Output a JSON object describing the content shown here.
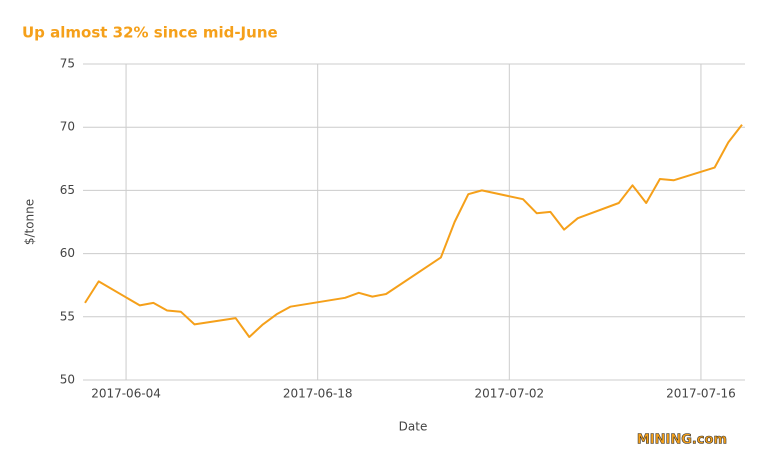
{
  "chart_data": {
    "type": "line",
    "title": "Up almost 32% since mid-June",
    "xlabel": "Date",
    "ylabel": "$/tonne",
    "watermark": "MINING.com",
    "color": "#f5a01a",
    "x": [
      "2017-06-01",
      "2017-06-02",
      "2017-06-05",
      "2017-06-06",
      "2017-06-07",
      "2017-06-08",
      "2017-06-09",
      "2017-06-12",
      "2017-06-13",
      "2017-06-14",
      "2017-06-15",
      "2017-06-16",
      "2017-06-20",
      "2017-06-21",
      "2017-06-22",
      "2017-06-23",
      "2017-06-27",
      "2017-06-28",
      "2017-06-29",
      "2017-06-30",
      "2017-07-03",
      "2017-07-04",
      "2017-07-05",
      "2017-07-06",
      "2017-07-07",
      "2017-07-10",
      "2017-07-11",
      "2017-07-12",
      "2017-07-13",
      "2017-07-14",
      "2017-07-17",
      "2017-07-18",
      "2017-07-19"
    ],
    "values": [
      56.1,
      57.8,
      55.9,
      56.1,
      55.5,
      55.4,
      54.4,
      54.9,
      53.4,
      54.4,
      55.2,
      55.8,
      56.5,
      56.9,
      56.6,
      56.8,
      59.7,
      62.5,
      64.7,
      65.0,
      64.3,
      63.2,
      63.3,
      61.9,
      62.8,
      64.0,
      65.4,
      64.0,
      65.9,
      65.8,
      66.8,
      68.8,
      70.2
    ],
    "xlim": [
      "2017-06-01",
      "2017-07-19"
    ],
    "xticks": [
      "2017-06-04",
      "2017-06-18",
      "2017-07-02",
      "2017-07-16"
    ],
    "ylim": [
      50,
      75
    ],
    "yticks": [
      50,
      55,
      60,
      65,
      70,
      75
    ],
    "grid": true
  }
}
